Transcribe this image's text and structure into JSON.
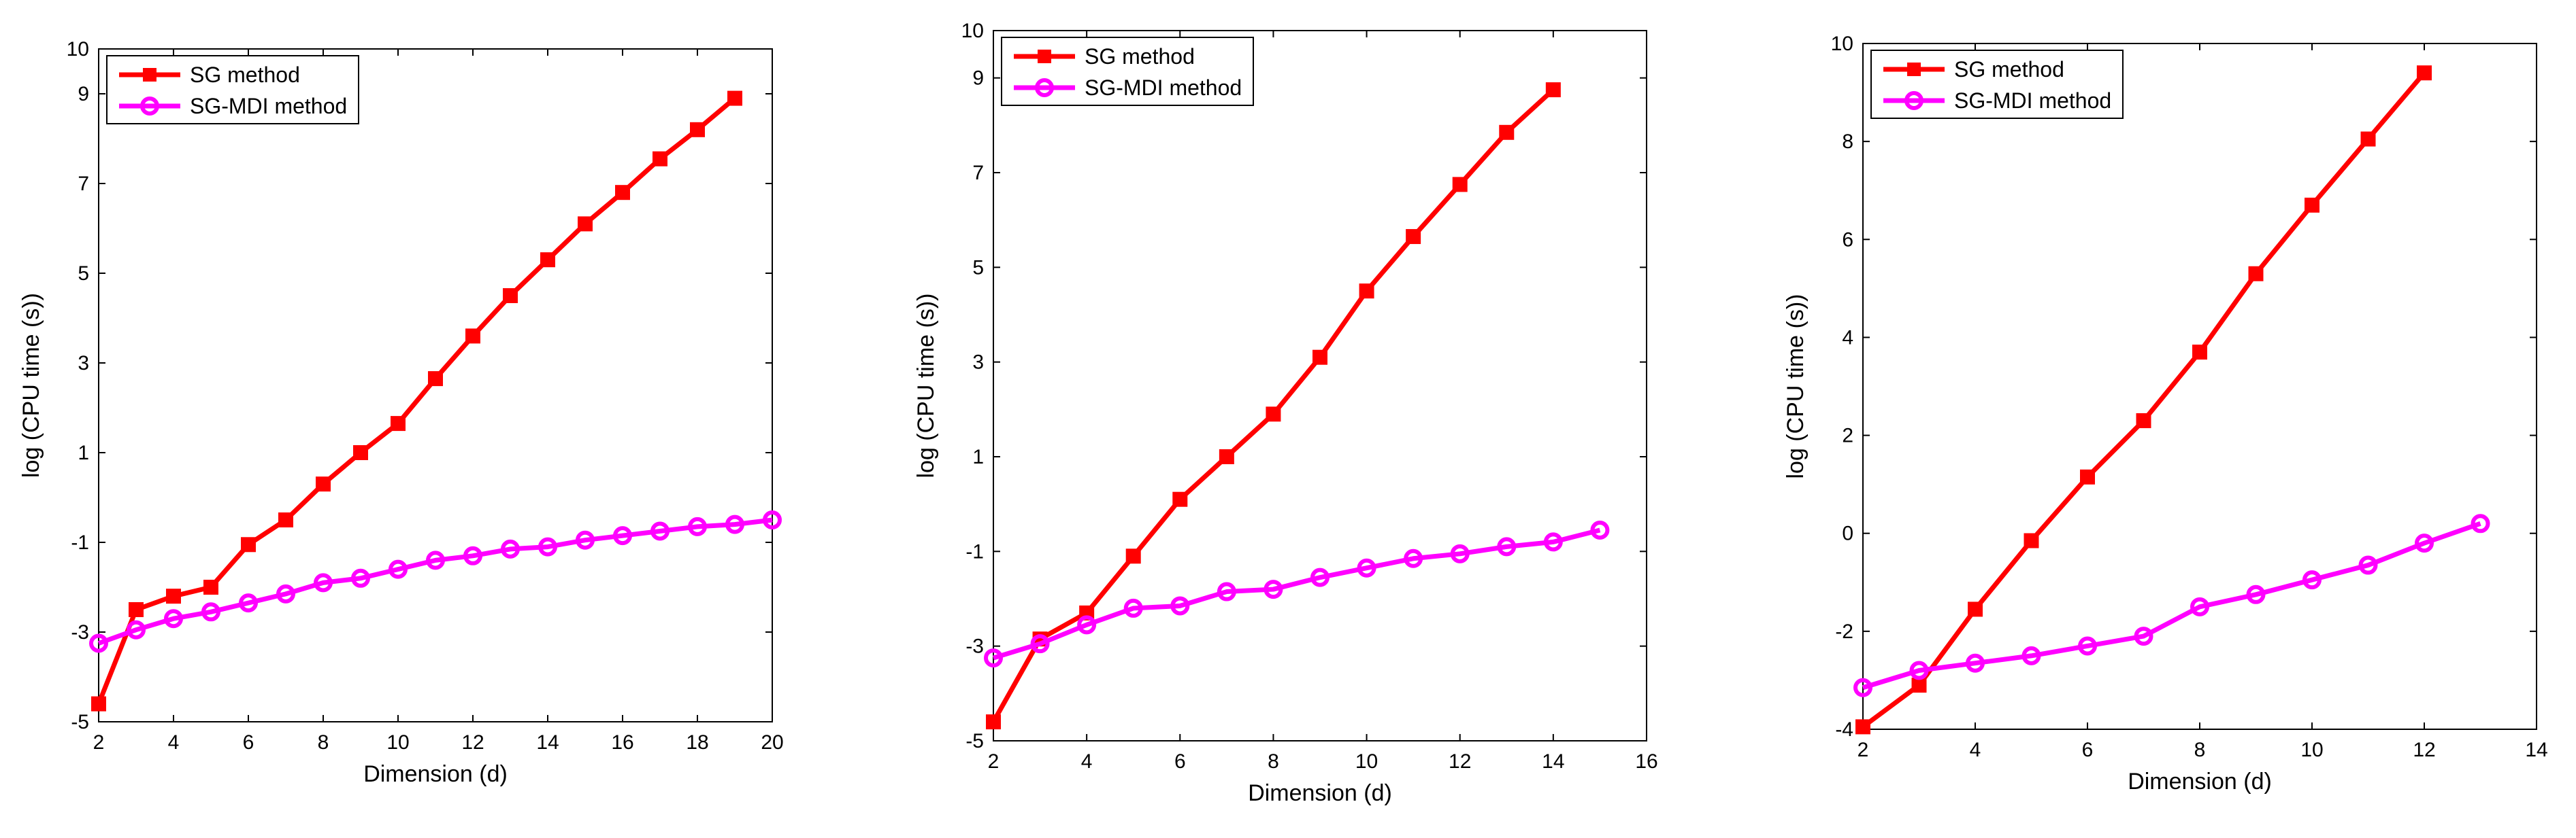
{
  "chart_data": [
    {
      "type": "line",
      "title": "",
      "xlabel": "Dimension (d)",
      "ylabel": "log (CPU time (s))",
      "xlim": [
        2,
        20
      ],
      "ylim": [
        -5,
        10
      ],
      "xticks": [
        2,
        4,
        6,
        8,
        10,
        12,
        14,
        16,
        18,
        20
      ],
      "yticks": [
        -5,
        -3,
        -1,
        1,
        3,
        5,
        7,
        9,
        10
      ],
      "grid": false,
      "legend_position": "top-left",
      "series": [
        {
          "name": "SG method",
          "color": "#ff0000",
          "marker": "square",
          "x": [
            2,
            3,
            4,
            5,
            6,
            7,
            8,
            9,
            10,
            11,
            12,
            13,
            14,
            15,
            16,
            17,
            18,
            19
          ],
          "y": [
            -4.6,
            -2.5,
            -2.2,
            -2.0,
            -1.05,
            -0.5,
            0.3,
            1.0,
            1.65,
            2.65,
            3.6,
            4.5,
            5.3,
            6.1,
            6.8,
            7.55,
            8.2,
            8.9
          ]
        },
        {
          "name": "SG-MDI method",
          "color": "#ff00ff",
          "marker": "circle",
          "x": [
            2,
            3,
            4,
            5,
            6,
            7,
            8,
            9,
            10,
            11,
            12,
            13,
            14,
            15,
            16,
            17,
            18,
            19,
            20
          ],
          "y": [
            -3.25,
            -2.95,
            -2.7,
            -2.55,
            -2.35,
            -2.15,
            -1.9,
            -1.8,
            -1.6,
            -1.4,
            -1.3,
            -1.15,
            -1.1,
            -0.95,
            -0.85,
            -0.75,
            -0.65,
            -0.6,
            -0.5
          ]
        }
      ]
    },
    {
      "type": "line",
      "title": "",
      "xlabel": "Dimension (d)",
      "ylabel": "log (CPU time (s))",
      "xlim": [
        2,
        16
      ],
      "ylim": [
        -5,
        10
      ],
      "xticks": [
        2,
        4,
        6,
        8,
        10,
        12,
        14,
        16
      ],
      "yticks": [
        -5,
        -3,
        -1,
        1,
        3,
        5,
        7,
        9,
        10
      ],
      "grid": false,
      "legend_position": "top-left",
      "series": [
        {
          "name": "SG method",
          "color": "#ff0000",
          "marker": "square",
          "x": [
            2,
            3,
            4,
            5,
            6,
            7,
            8,
            9,
            10,
            11,
            12,
            13,
            14
          ],
          "y": [
            -4.6,
            -2.85,
            -2.3,
            -1.1,
            0.1,
            1.0,
            1.9,
            3.1,
            4.5,
            5.65,
            6.75,
            7.85,
            8.75
          ]
        },
        {
          "name": "SG-MDI method",
          "color": "#ff00ff",
          "marker": "circle",
          "x": [
            2,
            3,
            4,
            5,
            6,
            7,
            8,
            9,
            10,
            11,
            12,
            13,
            14,
            15
          ],
          "y": [
            -3.25,
            -2.95,
            -2.55,
            -2.2,
            -2.15,
            -1.85,
            -1.8,
            -1.55,
            -1.35,
            -1.15,
            -1.05,
            -0.9,
            -0.8,
            -0.55
          ]
        }
      ]
    },
    {
      "type": "line",
      "title": "",
      "xlabel": "Dimension (d)",
      "ylabel": "log (CPU time (s))",
      "xlim": [
        2,
        14
      ],
      "ylim": [
        -4,
        10
      ],
      "xticks": [
        2,
        4,
        6,
        8,
        10,
        12,
        14
      ],
      "yticks": [
        -4,
        -2,
        0,
        2,
        4,
        6,
        8,
        10
      ],
      "grid": false,
      "legend_position": "top-left",
      "series": [
        {
          "name": "SG method",
          "color": "#ff0000",
          "marker": "square",
          "x": [
            2,
            3,
            4,
            5,
            6,
            7,
            8,
            9,
            10,
            11,
            12
          ],
          "y": [
            -3.95,
            -3.1,
            -1.55,
            -0.15,
            1.15,
            2.3,
            3.7,
            5.3,
            6.7,
            8.05,
            9.4
          ]
        },
        {
          "name": "SG-MDI method",
          "color": "#ff00ff",
          "marker": "circle",
          "x": [
            2,
            3,
            4,
            5,
            6,
            7,
            8,
            9,
            10,
            11,
            12,
            13
          ],
          "y": [
            -3.15,
            -2.8,
            -2.65,
            -2.5,
            -2.3,
            -2.1,
            -1.5,
            -1.25,
            -0.95,
            -0.65,
            -0.2,
            0.2
          ]
        }
      ]
    }
  ]
}
